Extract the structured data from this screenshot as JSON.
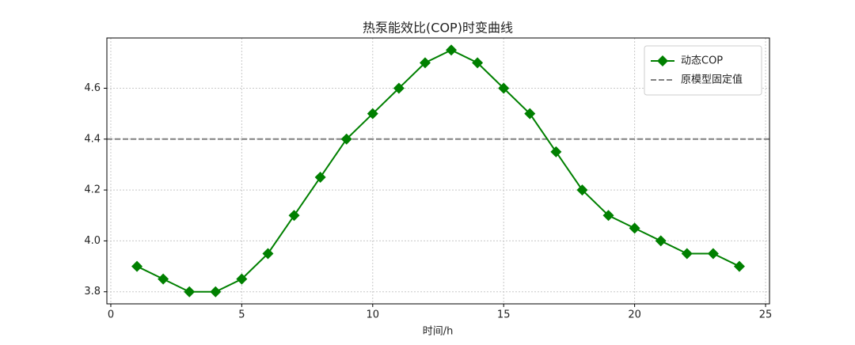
{
  "chart_data": {
    "type": "line",
    "title": "热泵能效比(COP)时变曲线",
    "x_label": "时间/h",
    "x": [
      1,
      2,
      3,
      4,
      5,
      6,
      7,
      8,
      9,
      10,
      11,
      12,
      13,
      14,
      15,
      16,
      17,
      18,
      19,
      20,
      21,
      22,
      23,
      24
    ],
    "series": [
      {
        "name": "动态COP",
        "color": "#008000",
        "marker": "diamond",
        "values": [
          3.9,
          3.85,
          3.8,
          3.8,
          3.85,
          3.95,
          4.1,
          4.25,
          4.4,
          4.5,
          4.6,
          4.7,
          4.75,
          4.7,
          4.6,
          4.5,
          4.35,
          4.2,
          4.1,
          4.05,
          4.0,
          3.95,
          3.95,
          3.9
        ]
      }
    ],
    "hlines": [
      {
        "name": "原模型固定值",
        "value": 4.4,
        "color": "#808080",
        "style": "dashed"
      }
    ],
    "xlim": [
      -0.15,
      25.15
    ],
    "xticks": [
      0,
      5,
      10,
      15,
      20,
      25
    ],
    "ylim": [
      3.7525,
      4.7975
    ],
    "yticks": [
      3.8,
      {
        "value": 4,
        "label": "4.0"
      },
      4.2,
      4.4,
      4.6
    ],
    "grid": true,
    "legend": "upper right"
  }
}
